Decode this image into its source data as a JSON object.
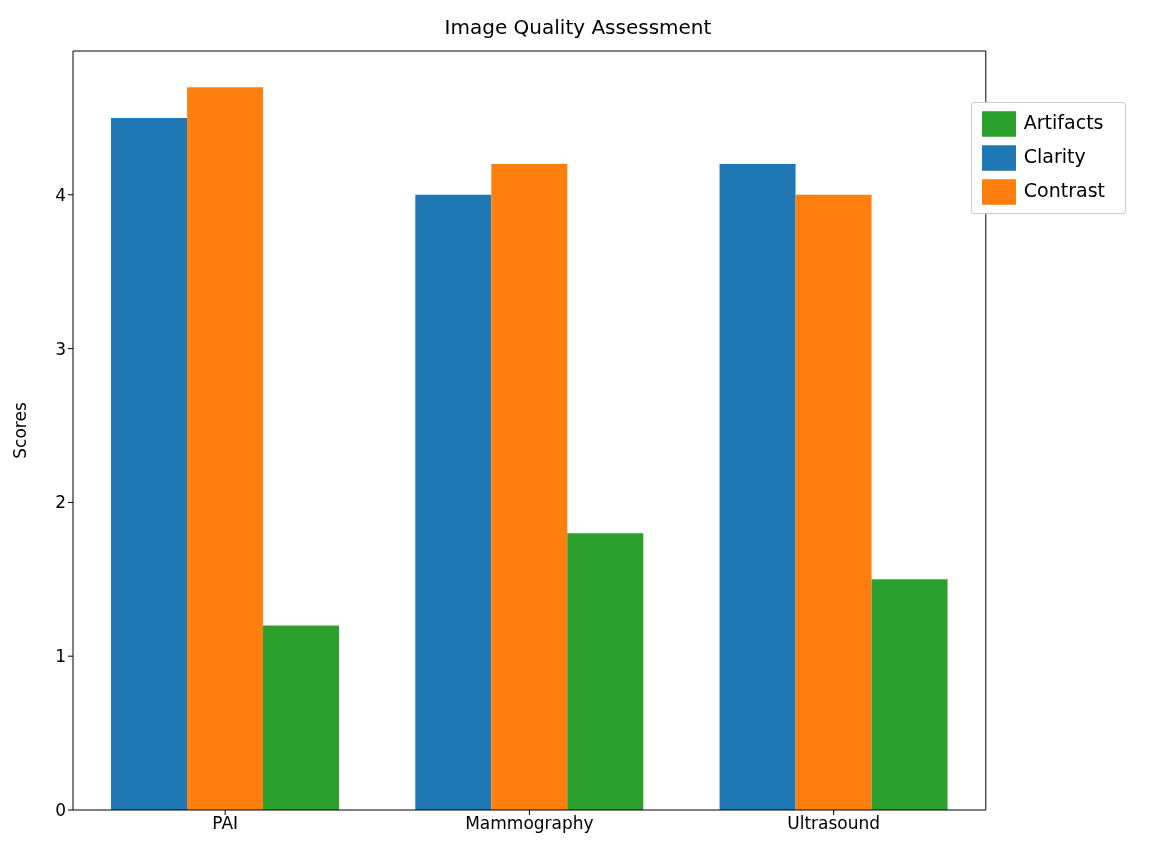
{
  "chart_data": {
    "type": "bar",
    "title": "Image Quality Assessment",
    "ylabel": "Scores",
    "categories": [
      "PAI",
      "Mammography",
      "Ultrasound"
    ],
    "series": [
      {
        "name": "Clarity",
        "color": "#1f77b4",
        "values": [
          4.5,
          4.0,
          4.2
        ]
      },
      {
        "name": "Contrast",
        "color": "#ff7f0e",
        "values": [
          4.7,
          4.2,
          4.0
        ]
      },
      {
        "name": "Artifacts",
        "color": "#2ca02c",
        "values": [
          1.2,
          1.8,
          1.5
        ]
      }
    ],
    "ylim": [
      0,
      4.935
    ],
    "yticks": [
      0,
      1,
      2,
      3,
      4
    ],
    "grid": false,
    "legend": "top right"
  }
}
